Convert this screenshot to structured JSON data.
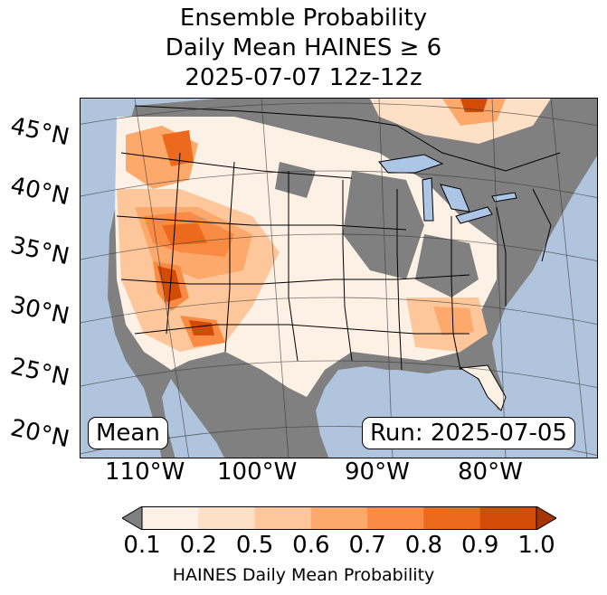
{
  "title": {
    "line1": "Ensemble Probability",
    "line2": "Daily Mean HAINES ≥ 6",
    "line3": "2025-07-07 12z-12z"
  },
  "lat_labels": [
    "45°N",
    "40°N",
    "35°N",
    "30°N",
    "25°N",
    "20°N"
  ],
  "lon_labels": [
    "110°W",
    "100°W",
    "90°W",
    "80°W"
  ],
  "boxes": {
    "mean": "Mean",
    "run": "Run: 2025-07-05"
  },
  "colorbar": {
    "ticks": [
      "0.1",
      "0.2",
      "0.5",
      "0.6",
      "0.7",
      "0.8",
      "0.9",
      "1.0"
    ],
    "colors": [
      "#fdf0e4",
      "#fde0c6",
      "#fdc79b",
      "#fda96b",
      "#f98b45",
      "#eb6a1e",
      "#d34c07"
    ],
    "under_color": "#808080",
    "over_color": "#a33604",
    "label": "HAINES Daily Mean Probability"
  },
  "map_colors": {
    "ocean": "#b0c4de",
    "lakes": "#aec6e6",
    "below_threshold": "#808080"
  }
}
